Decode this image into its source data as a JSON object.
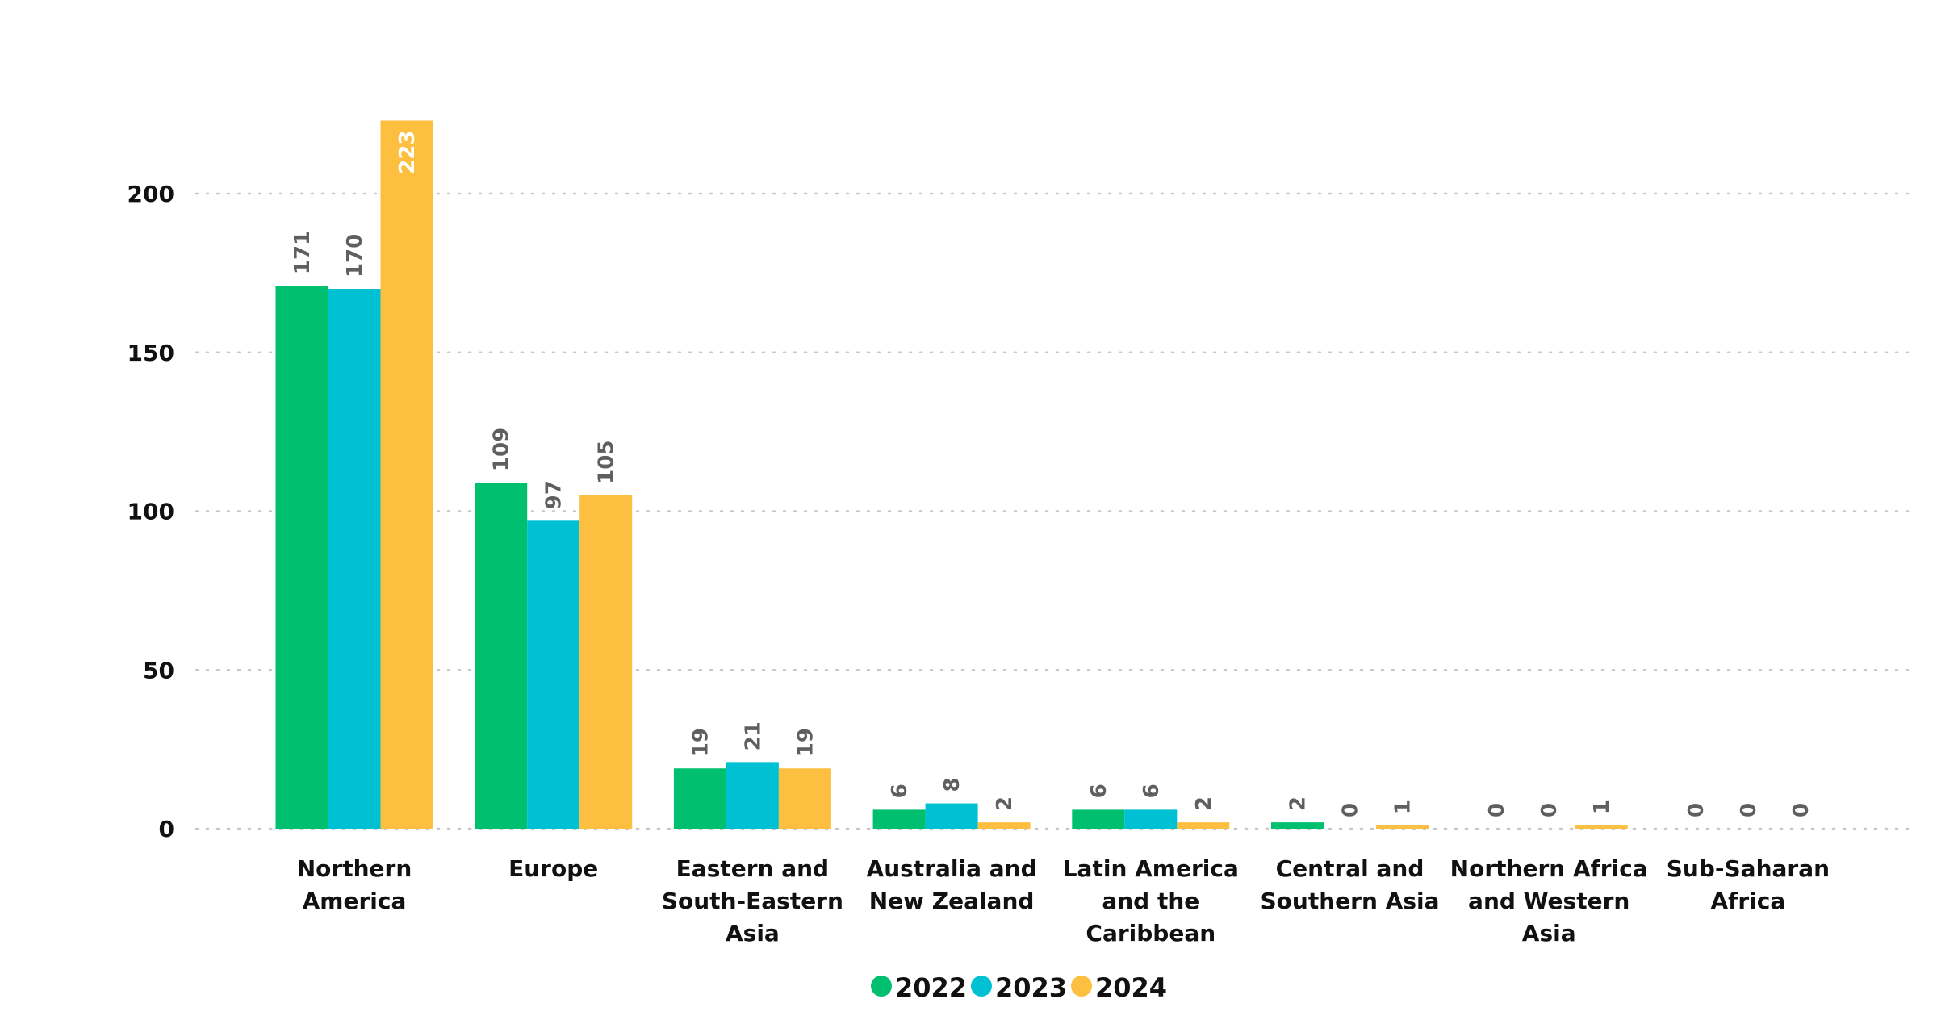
{
  "chart_data": {
    "type": "bar",
    "title": "",
    "xlabel": "",
    "ylabel": "",
    "ylim": [
      0,
      230
    ],
    "yticks": [
      0,
      50,
      100,
      150,
      200
    ],
    "grid": true,
    "legend_position": "bottom",
    "categories": [
      [
        "Northern",
        "America"
      ],
      [
        "Europe"
      ],
      [
        "Eastern and",
        "South-Eastern",
        "Asia"
      ],
      [
        "Australia and",
        "New Zealand"
      ],
      [
        "Latin America",
        "and the",
        "Caribbean"
      ],
      [
        "Central and",
        "Southern Asia"
      ],
      [
        "Northern Africa",
        "and Western",
        "Asia"
      ],
      [
        "Sub-Saharan",
        "Africa"
      ]
    ],
    "series": [
      {
        "name": "2022",
        "color": "#00BF6F",
        "values": [
          171,
          109,
          19,
          6,
          6,
          2,
          0,
          0
        ]
      },
      {
        "name": "2023",
        "color": "#00C1D4",
        "values": [
          170,
          97,
          21,
          8,
          6,
          0,
          0,
          0
        ]
      },
      {
        "name": "2024",
        "color": "#FCBF3F",
        "values": [
          223,
          105,
          19,
          2,
          2,
          1,
          1,
          0
        ]
      }
    ]
  }
}
